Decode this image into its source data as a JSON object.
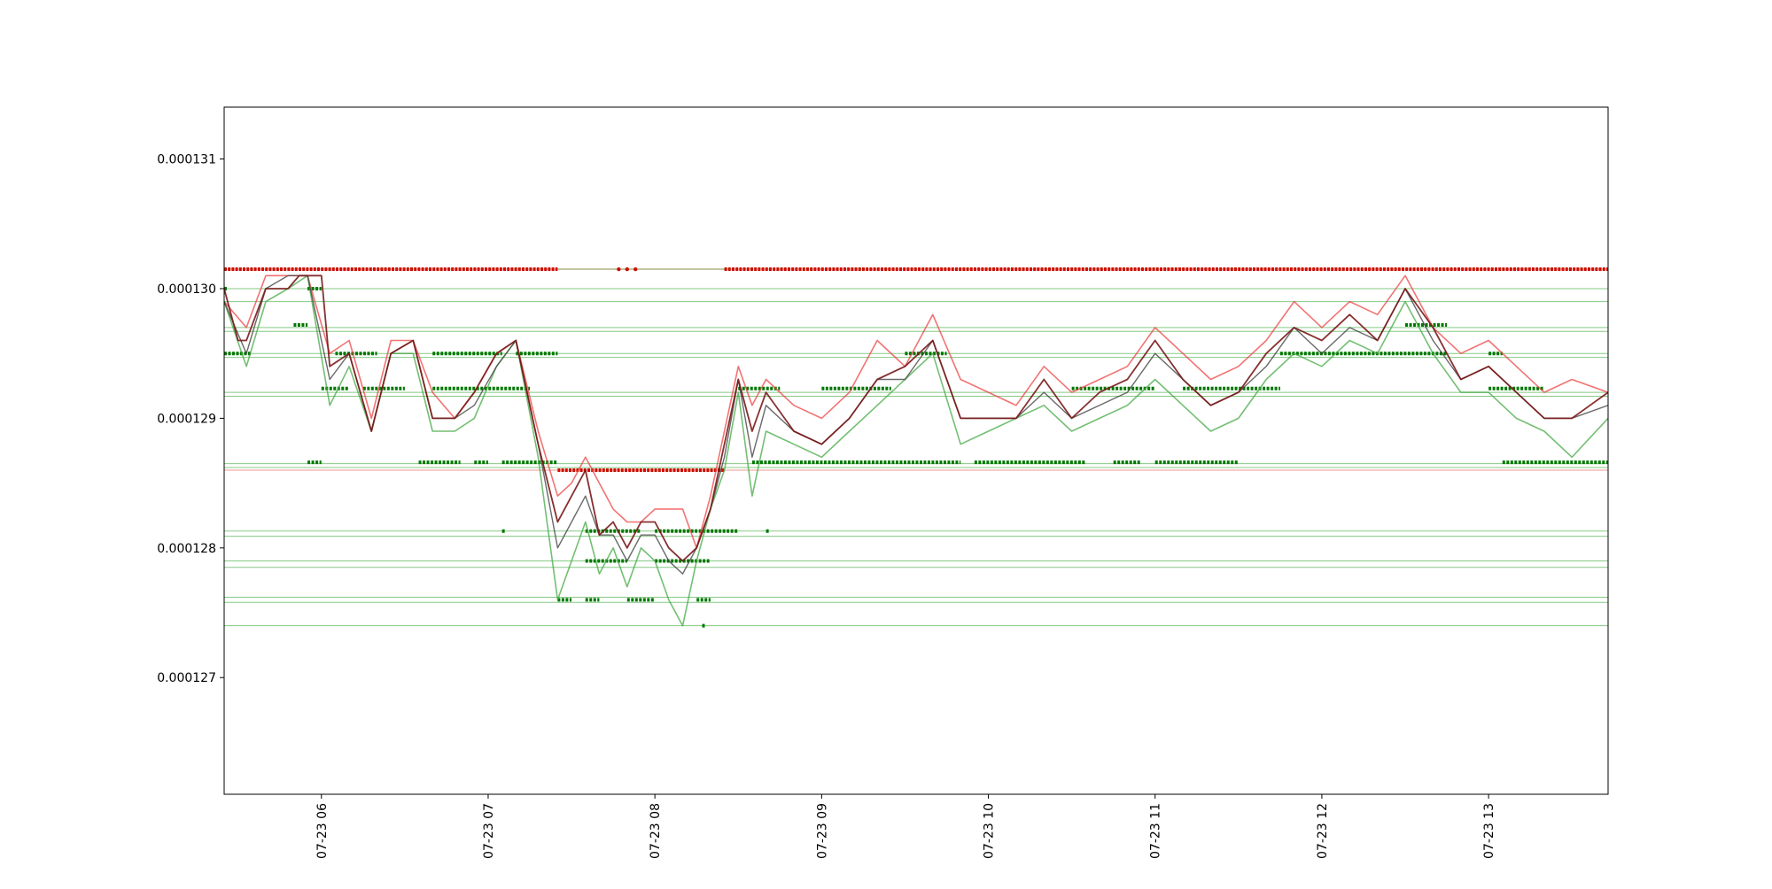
{
  "chart_data": {
    "type": "line",
    "title": "",
    "xlabel": "",
    "ylabel": "",
    "x_range": [
      "2023-07-23 05:25",
      "2023-07-23 13:43"
    ],
    "ylim": [
      0.0001261,
      0.0001314
    ],
    "y_ticks": [
      {
        "value": 0.000127,
        "label": "0.000127"
      },
      {
        "value": 0.000128,
        "label": "0.000128"
      },
      {
        "value": 0.000129,
        "label": "0.000129"
      },
      {
        "value": 0.00013,
        "label": "0.000130"
      },
      {
        "value": 0.000131,
        "label": "0.000131"
      }
    ],
    "x_ticks": [
      {
        "time": "2023-07-23 06:00",
        "label": "07-23 06"
      },
      {
        "time": "2023-07-23 07:00",
        "label": "07-23 07"
      },
      {
        "time": "2023-07-23 08:00",
        "label": "07-23 08"
      },
      {
        "time": "2023-07-23 09:00",
        "label": "07-23 09"
      },
      {
        "time": "2023-07-23 10:00",
        "label": "07-23 10"
      },
      {
        "time": "2023-07-23 11:00",
        "label": "07-23 11"
      },
      {
        "time": "2023-07-23 12:00",
        "label": "07-23 12"
      },
      {
        "time": "2023-07-23 13:00",
        "label": "07-23 13"
      }
    ],
    "grid": false,
    "legend": "none",
    "colors": {
      "ask": "#ee4444",
      "bid": "#44aa44",
      "mid": "#444444",
      "close": "#7a1a1a",
      "sell_level": "#cc1100",
      "buy_level": "#007700",
      "green_hline": "#66bb66",
      "red_hline": "#ee6666"
    },
    "horizontal_levels_green": [
      0.00013,
      0.0001299,
      0.0001297,
      0.00012967,
      0.0001295,
      0.00012947,
      0.0001292,
      0.00012917,
      0.00012865,
      0.00012862,
      0.00012813,
      0.00012809,
      0.0001279,
      0.00012785,
      0.00012762,
      0.00012758,
      0.0001274
    ],
    "horizontal_levels_red": [
      0.00013015,
      0.0001286
    ],
    "series": [
      {
        "key": "ask",
        "x": [
          "05:25",
          "05:33",
          "05:40",
          "05:48",
          "05:55",
          "06:03",
          "06:10",
          "06:18",
          "06:25",
          "06:33",
          "06:40",
          "06:48",
          "06:55",
          "07:03",
          "07:10",
          "07:18",
          "07:25",
          "07:30",
          "07:35",
          "07:40",
          "07:45",
          "07:50",
          "07:55",
          "08:00",
          "08:05",
          "08:10",
          "08:15",
          "08:20",
          "08:25",
          "08:30",
          "08:35",
          "08:40",
          "08:50",
          "09:00",
          "09:10",
          "09:20",
          "09:30",
          "09:40",
          "09:50",
          "10:00",
          "10:10",
          "10:20",
          "10:30",
          "10:40",
          "10:50",
          "11:00",
          "11:10",
          "11:20",
          "11:30",
          "11:40",
          "11:50",
          "12:00",
          "12:10",
          "12:20",
          "12:30",
          "12:40",
          "12:50",
          "13:00",
          "13:10",
          "13:20",
          "13:30",
          "13:43"
        ],
        "y": [
          0.0001299,
          0.0001297,
          0.0001301,
          0.0001301,
          0.0001301,
          0.0001295,
          0.0001296,
          0.000129,
          0.0001296,
          0.0001296,
          0.0001292,
          0.000129,
          0.0001292,
          0.0001295,
          0.0001296,
          0.0001289,
          0.0001284,
          0.0001285,
          0.0001287,
          0.0001285,
          0.0001283,
          0.0001282,
          0.0001282,
          0.0001283,
          0.0001283,
          0.0001283,
          0.000128,
          0.0001284,
          0.0001289,
          0.0001294,
          0.0001291,
          0.0001293,
          0.0001291,
          0.000129,
          0.0001292,
          0.0001296,
          0.0001294,
          0.0001298,
          0.0001293,
          0.0001292,
          0.0001291,
          0.0001294,
          0.0001292,
          0.0001293,
          0.0001294,
          0.0001297,
          0.0001295,
          0.0001293,
          0.0001294,
          0.0001296,
          0.0001299,
          0.0001297,
          0.0001299,
          0.0001298,
          0.0001301,
          0.0001297,
          0.0001295,
          0.0001296,
          0.0001294,
          0.0001292,
          0.0001293,
          0.0001292
        ]
      },
      {
        "key": "bid",
        "x": [
          "05:25",
          "05:33",
          "05:40",
          "05:48",
          "05:55",
          "06:03",
          "06:10",
          "06:18",
          "06:25",
          "06:33",
          "06:40",
          "06:48",
          "06:55",
          "07:03",
          "07:10",
          "07:18",
          "07:25",
          "07:30",
          "07:35",
          "07:40",
          "07:45",
          "07:50",
          "07:55",
          "08:00",
          "08:05",
          "08:10",
          "08:15",
          "08:20",
          "08:25",
          "08:30",
          "08:35",
          "08:40",
          "08:50",
          "09:00",
          "09:10",
          "09:20",
          "09:30",
          "09:40",
          "09:50",
          "10:00",
          "10:10",
          "10:20",
          "10:30",
          "10:40",
          "10:50",
          "11:00",
          "11:10",
          "11:20",
          "11:30",
          "11:40",
          "11:50",
          "12:00",
          "12:10",
          "12:20",
          "12:30",
          "12:40",
          "12:50",
          "13:00",
          "13:10",
          "13:20",
          "13:30",
          "13:43"
        ],
        "y": [
          0.0001299,
          0.0001294,
          0.0001299,
          0.00013,
          0.0001301,
          0.0001291,
          0.0001294,
          0.0001289,
          0.0001295,
          0.0001295,
          0.0001289,
          0.0001289,
          0.000129,
          0.0001294,
          0.0001296,
          0.0001287,
          0.0001276,
          0.0001279,
          0.0001282,
          0.0001278,
          0.000128,
          0.0001277,
          0.000128,
          0.0001279,
          0.0001276,
          0.0001274,
          0.0001279,
          0.0001283,
          0.0001286,
          0.0001292,
          0.0001284,
          0.0001289,
          0.0001288,
          0.0001287,
          0.0001289,
          0.0001291,
          0.0001293,
          0.0001295,
          0.0001288,
          0.0001289,
          0.000129,
          0.0001291,
          0.0001289,
          0.000129,
          0.0001291,
          0.0001293,
          0.0001291,
          0.0001289,
          0.000129,
          0.0001293,
          0.0001295,
          0.0001294,
          0.0001296,
          0.0001295,
          0.0001299,
          0.0001295,
          0.0001292,
          0.0001292,
          0.000129,
          0.0001289,
          0.0001287,
          0.000129
        ]
      },
      {
        "key": "mid",
        "x": [
          "05:25",
          "05:33",
          "05:40",
          "05:48",
          "05:55",
          "06:03",
          "06:10",
          "06:18",
          "06:25",
          "06:33",
          "06:40",
          "06:48",
          "06:55",
          "07:03",
          "07:10",
          "07:18",
          "07:25",
          "07:30",
          "07:35",
          "07:40",
          "07:45",
          "07:50",
          "07:55",
          "08:00",
          "08:05",
          "08:10",
          "08:15",
          "08:20",
          "08:25",
          "08:30",
          "08:35",
          "08:40",
          "08:50",
          "09:00",
          "09:10",
          "09:20",
          "09:30",
          "09:40",
          "09:50",
          "10:00",
          "10:10",
          "10:20",
          "10:30",
          "10:40",
          "10:50",
          "11:00",
          "11:10",
          "11:20",
          "11:30",
          "11:40",
          "11:50",
          "12:00",
          "12:10",
          "12:20",
          "12:30",
          "12:40",
          "12:50",
          "13:00",
          "13:10",
          "13:20",
          "13:30",
          "13:43"
        ],
        "y": [
          0.0001299,
          0.0001295,
          0.00013,
          0.0001301,
          0.0001301,
          0.0001293,
          0.0001295,
          0.0001289,
          0.0001295,
          0.0001296,
          0.000129,
          0.000129,
          0.0001291,
          0.0001294,
          0.0001296,
          0.0001288,
          0.000128,
          0.0001282,
          0.0001284,
          0.0001281,
          0.0001281,
          0.0001279,
          0.0001281,
          0.0001281,
          0.0001279,
          0.0001278,
          0.000128,
          0.0001283,
          0.0001287,
          0.0001293,
          0.0001287,
          0.0001291,
          0.0001289,
          0.0001288,
          0.000129,
          0.0001293,
          0.0001293,
          0.0001296,
          0.000129,
          0.000129,
          0.000129,
          0.0001292,
          0.000129,
          0.0001291,
          0.0001292,
          0.0001295,
          0.0001293,
          0.0001291,
          0.0001292,
          0.0001294,
          0.0001297,
          0.0001295,
          0.0001297,
          0.0001296,
          0.00013,
          0.0001296,
          0.0001293,
          0.0001294,
          0.0001292,
          0.000129,
          0.000129,
          0.0001291
        ]
      },
      {
        "key": "close",
        "x": [
          "05:25",
          "05:30",
          "05:33",
          "05:40",
          "05:48",
          "05:52",
          "05:55",
          "06:00",
          "06:03",
          "06:10",
          "06:18",
          "06:25",
          "06:33",
          "06:40",
          "06:48",
          "06:55",
          "07:03",
          "07:10",
          "07:18",
          "07:25",
          "07:30",
          "07:35",
          "07:40",
          "07:45",
          "07:50",
          "07:55",
          "08:00",
          "08:05",
          "08:10",
          "08:15",
          "08:20",
          "08:25",
          "08:30",
          "08:35",
          "08:40",
          "08:50",
          "09:00",
          "09:10",
          "09:20",
          "09:30",
          "09:40",
          "09:50",
          "10:00",
          "10:10",
          "10:20",
          "10:30",
          "10:40",
          "10:50",
          "11:00",
          "11:10",
          "11:20",
          "11:30",
          "11:40",
          "11:50",
          "12:00",
          "12:10",
          "12:20",
          "12:30",
          "12:40",
          "12:50",
          "13:00",
          "13:10",
          "13:20",
          "13:30",
          "13:43"
        ],
        "y": [
          0.00013,
          0.0001296,
          0.0001296,
          0.00013,
          0.00013,
          0.0001301,
          0.0001301,
          0.0001301,
          0.0001294,
          0.0001295,
          0.0001289,
          0.0001295,
          0.0001296,
          0.000129,
          0.000129,
          0.0001292,
          0.0001295,
          0.0001296,
          0.0001288,
          0.0001282,
          0.0001284,
          0.0001286,
          0.0001281,
          0.0001282,
          0.000128,
          0.0001282,
          0.0001282,
          0.000128,
          0.0001279,
          0.000128,
          0.0001283,
          0.0001288,
          0.0001293,
          0.0001289,
          0.0001292,
          0.0001289,
          0.0001288,
          0.000129,
          0.0001293,
          0.0001294,
          0.0001296,
          0.000129,
          0.000129,
          0.000129,
          0.0001293,
          0.000129,
          0.0001292,
          0.0001293,
          0.0001296,
          0.0001293,
          0.0001291,
          0.0001292,
          0.0001295,
          0.0001297,
          0.0001296,
          0.0001298,
          0.0001296,
          0.00013,
          0.0001297,
          0.0001293,
          0.0001294,
          0.0001292,
          0.000129,
          0.000129,
          0.0001292
        ]
      }
    ],
    "sell_level_points": {
      "y": 0.00013015,
      "segments": [
        [
          "05:25",
          "07:25"
        ],
        [
          "08:25",
          "13:43"
        ]
      ],
      "extra_points": [
        "07:47",
        "07:50",
        "07:53"
      ],
      "lower_y": 0.0001286,
      "lower_segment": [
        "07:25",
        "08:25"
      ]
    },
    "buy_level_points": [
      {
        "y": 0.00013,
        "segments": [
          [
            "05:25",
            "05:26"
          ],
          [
            "05:55",
            "06:00"
          ]
        ]
      },
      {
        "y": 0.00012972,
        "segments": [
          [
            "05:50",
            "05:55"
          ],
          [
            "12:30",
            "12:45"
          ]
        ]
      },
      {
        "y": 0.0001295,
        "segments": [
          [
            "05:25",
            "05:35"
          ],
          [
            "06:05",
            "06:20"
          ],
          [
            "06:40",
            "07:05"
          ],
          [
            "07:10",
            "07:25"
          ],
          [
            "09:30",
            "09:45"
          ],
          [
            "11:45",
            "12:45"
          ],
          [
            "13:00",
            "13:05"
          ]
        ]
      },
      {
        "y": 0.00012923,
        "segments": [
          [
            "06:00",
            "06:10"
          ],
          [
            "06:15",
            "06:30"
          ],
          [
            "06:40",
            "07:15"
          ],
          [
            "08:30",
            "08:45"
          ],
          [
            "09:00",
            "09:25"
          ],
          [
            "10:30",
            "11:00"
          ],
          [
            "11:10",
            "11:45"
          ],
          [
            "13:00",
            "13:20"
          ]
        ]
      },
      {
        "y": 0.00012866,
        "segments": [
          [
            "05:55",
            "06:00"
          ],
          [
            "06:35",
            "06:50"
          ],
          [
            "06:55",
            "07:00"
          ],
          [
            "07:05",
            "07:25"
          ],
          [
            "08:35",
            "09:50"
          ],
          [
            "09:55",
            "10:35"
          ],
          [
            "10:45",
            "10:55"
          ],
          [
            "11:00",
            "11:30"
          ],
          [
            "13:05",
            "13:43"
          ]
        ]
      },
      {
        "y": 0.00012813,
        "segments": [
          [
            "07:05",
            "07:06"
          ],
          [
            "07:35",
            "07:55"
          ],
          [
            "08:00",
            "08:30"
          ],
          [
            "08:40",
            "08:41"
          ]
        ]
      },
      {
        "y": 0.0001279,
        "segments": [
          [
            "07:35",
            "07:50"
          ],
          [
            "08:00",
            "08:20"
          ]
        ]
      },
      {
        "y": 0.0001276,
        "segments": [
          [
            "07:25",
            "07:30"
          ],
          [
            "07:35",
            "07:40"
          ],
          [
            "07:50",
            "08:00"
          ],
          [
            "08:15",
            "08:20"
          ]
        ]
      },
      {
        "y": 0.0001274,
        "segments": [
          [
            "08:17",
            "08:18"
          ]
        ]
      }
    ]
  }
}
